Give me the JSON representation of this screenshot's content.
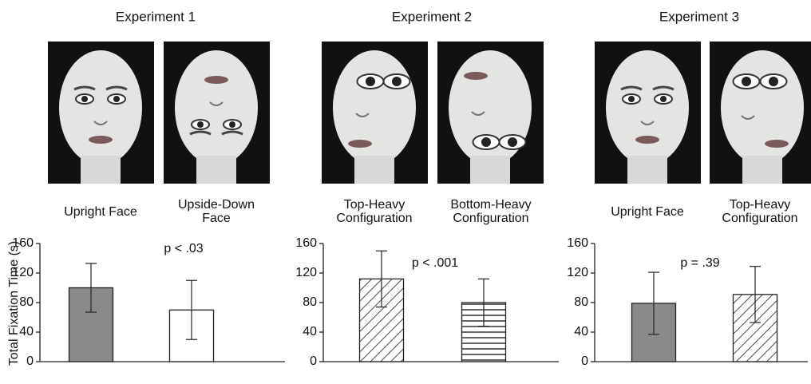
{
  "chart_data": [
    {
      "type": "bar",
      "title": "Experiment 1",
      "ylabel": "Total Fixation Time (s)",
      "categories": [
        [
          "Upright Face"
        ],
        [
          "Upside-Down",
          "Face"
        ]
      ],
      "values": [
        100,
        70
      ],
      "errors": [
        33,
        40
      ],
      "bar_patterns": [
        "gray",
        "white"
      ],
      "annotation": "p < .03",
      "ylim": [
        0,
        160
      ],
      "yticks": [
        0,
        40,
        80,
        120,
        160
      ]
    },
    {
      "type": "bar",
      "title": "Experiment 2",
      "categories": [
        [
          "Top-Heavy",
          "Configuration"
        ],
        [
          "Bottom-Heavy",
          "Configuration"
        ]
      ],
      "values": [
        112,
        80
      ],
      "errors": [
        38,
        32
      ],
      "bar_patterns": [
        "diagonal",
        "horizontal"
      ],
      "annotation": "p < .001",
      "ylim": [
        0,
        160
      ],
      "yticks": [
        0,
        40,
        80,
        120,
        160
      ]
    },
    {
      "type": "bar",
      "title": "Experiment 3",
      "categories": [
        [
          "Upright Face"
        ],
        [
          "Top-Heavy",
          "Configuration"
        ]
      ],
      "values": [
        79,
        91
      ],
      "errors": [
        42,
        38
      ],
      "bar_patterns": [
        "gray",
        "diagonal"
      ],
      "annotation": "p = .39",
      "ylim": [
        0,
        160
      ],
      "yticks": [
        0,
        40,
        80,
        120,
        160
      ]
    }
  ]
}
